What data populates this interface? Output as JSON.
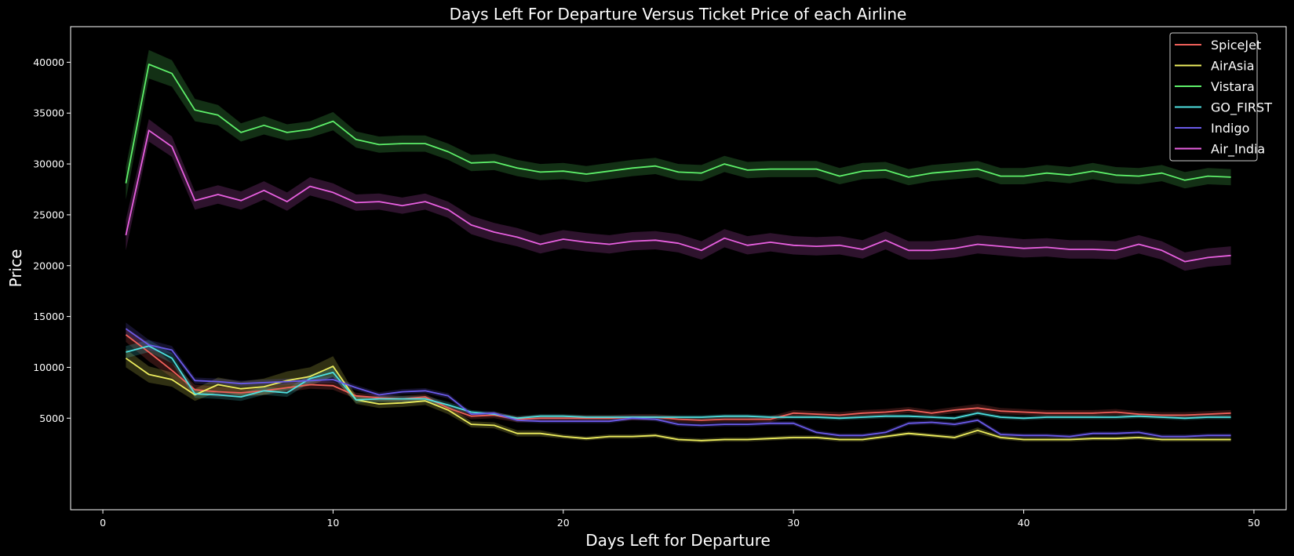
{
  "chart_data": {
    "type": "line",
    "title": "Days Left For Departure Versus Ticket Price of each Airline",
    "xlabel": "Days Left for Departure",
    "ylabel": "Price",
    "xlim": [
      -1.4,
      51.4
    ],
    "ylim": [
      -4000,
      43500
    ],
    "x_ticks": [
      0,
      10,
      20,
      30,
      40,
      50
    ],
    "y_ticks": [
      5000,
      10000,
      15000,
      20000,
      25000,
      30000,
      35000,
      40000
    ],
    "x_tick_labels": [
      "0",
      "10",
      "20",
      "30",
      "40",
      "50"
    ],
    "y_tick_labels": [
      "5000",
      "10000",
      "15000",
      "20000",
      "25000",
      "30000",
      "35000",
      "40000"
    ],
    "grid": false,
    "legend_position": "top-right",
    "background": "#000000",
    "x": [
      1,
      2,
      3,
      4,
      5,
      6,
      7,
      8,
      9,
      10,
      11,
      12,
      13,
      14,
      15,
      16,
      17,
      18,
      19,
      20,
      21,
      22,
      23,
      24,
      25,
      26,
      27,
      28,
      29,
      30,
      31,
      32,
      33,
      34,
      35,
      36,
      37,
      38,
      39,
      40,
      41,
      42,
      43,
      44,
      45,
      46,
      47,
      48,
      49
    ],
    "series": [
      {
        "name": "SpiceJet",
        "color": "#f0605a",
        "values": [
          13200,
          11500,
          9700,
          7800,
          7600,
          7500,
          7700,
          8000,
          8300,
          8200,
          7200,
          7000,
          6900,
          7100,
          6000,
          5200,
          5300,
          4900,
          5000,
          5000,
          5000,
          5000,
          5100,
          5100,
          4900,
          4800,
          4900,
          4900,
          4900,
          5500,
          5400,
          5300,
          5500,
          5600,
          5800,
          5500,
          5800,
          6000,
          5700,
          5600,
          5500,
          5500,
          5500,
          5600,
          5400,
          5300,
          5300,
          5400,
          5500
        ],
        "band": [
          700,
          900,
          700,
          500,
          500,
          400,
          400,
          400,
          400,
          400,
          300,
          300,
          300,
          300,
          300,
          300,
          300,
          300,
          300,
          300,
          300,
          300,
          300,
          300,
          300,
          300,
          300,
          300,
          300,
          300,
          300,
          300,
          300,
          300,
          300,
          300,
          300,
          400,
          300,
          300,
          300,
          300,
          300,
          300,
          300,
          300,
          300,
          300,
          300
        ]
      },
      {
        "name": "AirAsia",
        "color": "#eeee5e",
        "values": [
          10900,
          9300,
          8800,
          7300,
          8300,
          7900,
          8100,
          8700,
          9100,
          10100,
          6800,
          6400,
          6500,
          6700,
          5800,
          4400,
          4300,
          3500,
          3500,
          3200,
          3000,
          3200,
          3200,
          3300,
          2900,
          2800,
          2900,
          2900,
          3000,
          3100,
          3100,
          2900,
          2900,
          3200,
          3500,
          3300,
          3100,
          3800,
          3100,
          2900,
          2900,
          2900,
          3000,
          3000,
          3100,
          2900,
          2900,
          2900,
          2900
        ],
        "band": [
          900,
          800,
          700,
          600,
          700,
          700,
          800,
          900,
          900,
          1000,
          400,
          400,
          400,
          400,
          400,
          300,
          300,
          300,
          300,
          200,
          200,
          200,
          200,
          200,
          200,
          200,
          200,
          200,
          200,
          200,
          200,
          200,
          200,
          200,
          200,
          200,
          200,
          300,
          200,
          200,
          200,
          200,
          200,
          200,
          200,
          200,
          200,
          200,
          200
        ]
      },
      {
        "name": "Vistara",
        "color": "#5ef06a",
        "values": [
          28100,
          39800,
          38900,
          35300,
          34800,
          33100,
          33800,
          33100,
          33400,
          34200,
          32400,
          31900,
          32000,
          32000,
          31200,
          30100,
          30200,
          29600,
          29200,
          29300,
          29000,
          29300,
          29600,
          29800,
          29200,
          29100,
          30000,
          29400,
          29500,
          29500,
          29500,
          28800,
          29300,
          29400,
          28700,
          29100,
          29300,
          29500,
          28800,
          28800,
          29100,
          28900,
          29300,
          28900,
          28800,
          29100,
          28400,
          28800,
          28700
        ],
        "band": [
          1600,
          1400,
          1300,
          1100,
          1000,
          900,
          900,
          800,
          800,
          900,
          800,
          800,
          800,
          800,
          800,
          800,
          800,
          800,
          800,
          800,
          800,
          800,
          800,
          800,
          800,
          800,
          800,
          800,
          800,
          800,
          800,
          800,
          800,
          800,
          800,
          800,
          800,
          800,
          800,
          800,
          800,
          800,
          800,
          800,
          800,
          800,
          800,
          800,
          800
        ]
      },
      {
        "name": "GO_FIRST",
        "color": "#4ee0e0",
        "values": [
          11500,
          12100,
          10900,
          7400,
          7300,
          7100,
          7700,
          7500,
          8900,
          9500,
          6800,
          6900,
          6900,
          6900,
          6300,
          5600,
          5400,
          5000,
          5200,
          5200,
          5100,
          5100,
          5100,
          5100,
          5100,
          5100,
          5200,
          5200,
          5100,
          5100,
          5100,
          5000,
          5100,
          5200,
          5200,
          5100,
          5000,
          5500,
          5100,
          5000,
          5100,
          5100,
          5100,
          5100,
          5200,
          5100,
          5000,
          5100,
          5100
        ],
        "band": [
          600,
          600,
          500,
          400,
          400,
          400,
          400,
          400,
          400,
          500,
          300,
          300,
          300,
          300,
          300,
          200,
          200,
          200,
          200,
          200,
          200,
          200,
          200,
          200,
          200,
          200,
          200,
          200,
          200,
          200,
          200,
          200,
          200,
          200,
          200,
          200,
          200,
          200,
          200,
          200,
          200,
          200,
          200,
          200,
          200,
          200,
          200,
          200,
          200
        ]
      },
      {
        "name": "Indigo",
        "color": "#6a5ae8",
        "values": [
          13800,
          12200,
          11700,
          8700,
          8600,
          8400,
          8500,
          8600,
          8700,
          8800,
          8000,
          7300,
          7600,
          7700,
          7200,
          5400,
          5500,
          4800,
          4700,
          4700,
          4700,
          4700,
          5000,
          4900,
          4400,
          4300,
          4400,
          4400,
          4500,
          4500,
          3600,
          3300,
          3300,
          3600,
          4500,
          4600,
          4400,
          4800,
          3400,
          3300,
          3300,
          3200,
          3500,
          3500,
          3600,
          3200,
          3200,
          3300,
          3300
        ],
        "band": [
          600,
          500,
          400,
          300,
          300,
          300,
          300,
          300,
          300,
          300,
          250,
          250,
          250,
          250,
          250,
          200,
          200,
          200,
          200,
          200,
          200,
          200,
          200,
          200,
          200,
          200,
          200,
          200,
          200,
          200,
          200,
          200,
          200,
          200,
          200,
          200,
          200,
          200,
          200,
          200,
          200,
          200,
          200,
          200,
          200,
          200,
          200,
          200,
          200
        ]
      },
      {
        "name": "Air_India",
        "color": "#e860e0",
        "values": [
          23000,
          33300,
          31700,
          26400,
          27000,
          26400,
          27400,
          26300,
          27800,
          27200,
          26200,
          26300,
          25900,
          26300,
          25500,
          24000,
          23300,
          22800,
          22100,
          22600,
          22300,
          22100,
          22400,
          22500,
          22200,
          21500,
          22700,
          22000,
          22300,
          22000,
          21900,
          22000,
          21600,
          22500,
          21500,
          21500,
          21700,
          22100,
          21900,
          21700,
          21800,
          21600,
          21600,
          21500,
          22100,
          21500,
          20400,
          20800,
          21000
        ],
        "band": [
          1500,
          1100,
          1000,
          900,
          900,
          900,
          900,
          900,
          900,
          900,
          800,
          800,
          800,
          800,
          800,
          900,
          900,
          900,
          900,
          900,
          900,
          900,
          900,
          900,
          900,
          900,
          900,
          900,
          900,
          900,
          900,
          900,
          900,
          900,
          900,
          900,
          900,
          900,
          900,
          900,
          900,
          900,
          900,
          900,
          900,
          900,
          900,
          900,
          900
        ]
      }
    ]
  }
}
